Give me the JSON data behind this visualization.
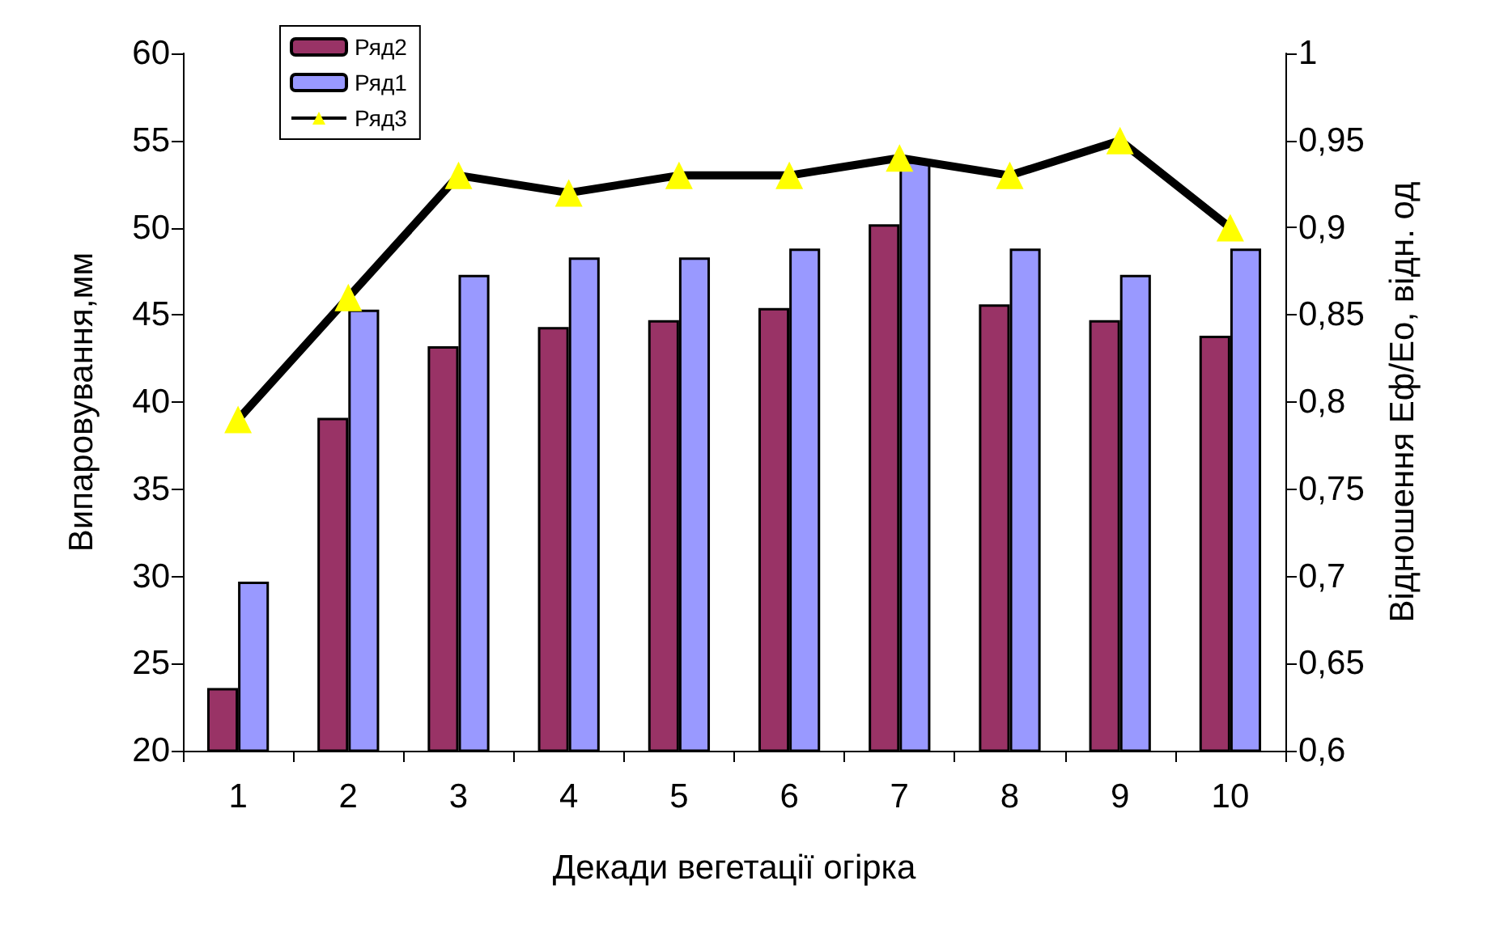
{
  "chart_data": {
    "type": "bar",
    "xlabel": "Декади вегетації огірка",
    "ylabel": "Випаровування,мм",
    "y2label": "Відношення Еф/Ео, відн. од",
    "categories": [
      "1",
      "2",
      "3",
      "4",
      "5",
      "6",
      "7",
      "8",
      "9",
      "10"
    ],
    "series": [
      {
        "name": "Ряд2",
        "color": "#993366",
        "values": [
          23.6,
          39.1,
          43.2,
          44.3,
          44.7,
          45.4,
          50.2,
          45.6,
          44.7,
          43.8
        ]
      },
      {
        "name": "Ряд1",
        "color": "#9999ff",
        "values": [
          29.7,
          45.3,
          47.3,
          48.3,
          48.3,
          48.8,
          53.8,
          48.8,
          47.3,
          48.8
        ]
      },
      {
        "name": "Ряд3",
        "type": "line",
        "axis": "y2",
        "color": "#000000",
        "marker": "triangle",
        "values": [
          0.79,
          0.86,
          0.93,
          0.92,
          0.93,
          0.93,
          0.94,
          0.93,
          0.95,
          0.9
        ]
      }
    ],
    "ylim": [
      20,
      60
    ],
    "yticks": [
      20,
      25,
      30,
      35,
      40,
      45,
      50,
      55,
      60
    ],
    "y2lim": [
      0.6,
      1
    ],
    "y2ticks": [
      {
        "value": 0.6,
        "label": "0,6"
      },
      {
        "value": 0.65,
        "label": "0,65"
      },
      {
        "value": 0.7,
        "label": "0,7"
      },
      {
        "value": 0.75,
        "label": "0,75"
      },
      {
        "value": 0.8,
        "label": "0,8"
      },
      {
        "value": 0.85,
        "label": "0,85"
      },
      {
        "value": 0.9,
        "label": "0,9"
      },
      {
        "value": 0.95,
        "label": "0,95"
      },
      {
        "value": 1,
        "label": "1"
      }
    ],
    "grid": false,
    "legend": "top left"
  }
}
